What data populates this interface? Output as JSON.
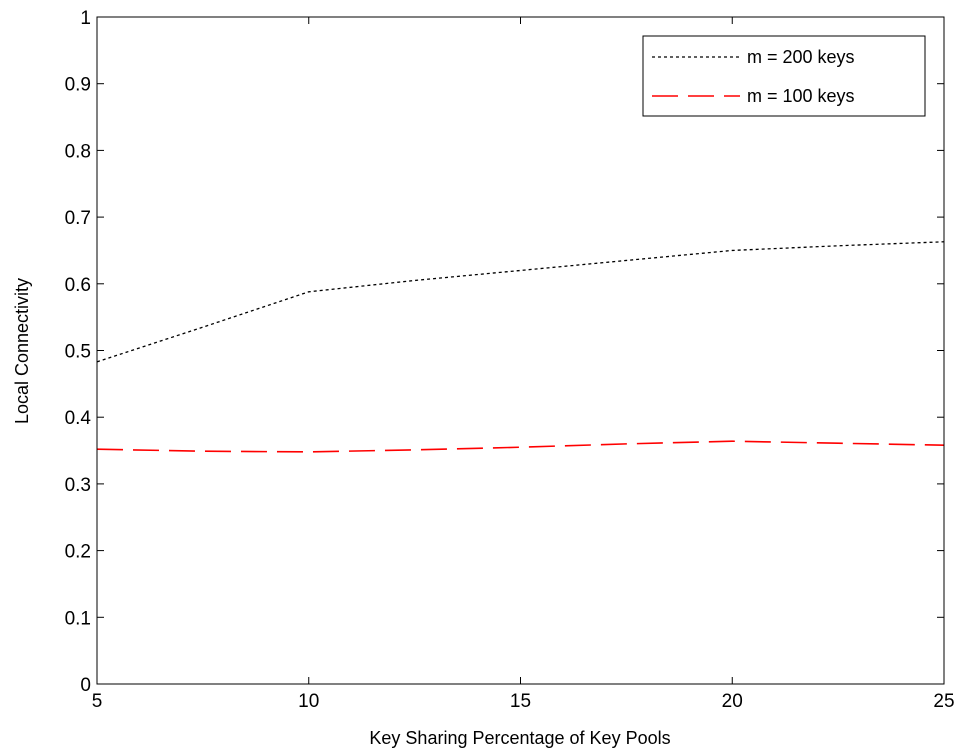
{
  "chart_data": {
    "type": "line",
    "title": "",
    "xlabel": "Key Sharing Percentage of Key Pools",
    "ylabel": "Local Connectivity",
    "xlim": [
      5,
      25
    ],
    "ylim": [
      0,
      1
    ],
    "xticks": [
      "5",
      "10",
      "15",
      "20",
      "25"
    ],
    "yticks": [
      "0",
      "0.1",
      "0.2",
      "0.3",
      "0.4",
      "0.5",
      "0.6",
      "0.7",
      "0.8",
      "0.9",
      "1"
    ],
    "grid": false,
    "legend_position": "top-right",
    "x": [
      5,
      7.5,
      10,
      12.5,
      15,
      17.5,
      20,
      22.5,
      25
    ],
    "series": [
      {
        "name": "m = 200 keys",
        "color": "#000000",
        "style": "dotted",
        "values": [
          0.483,
          0.535,
          0.588,
          0.605,
          0.62,
          0.635,
          0.65,
          0.657,
          0.663
        ]
      },
      {
        "name": "m = 100 keys",
        "color": "#ff0000",
        "style": "dashed",
        "values": [
          0.352,
          0.349,
          0.348,
          0.351,
          0.355,
          0.36,
          0.364,
          0.361,
          0.358
        ]
      }
    ]
  }
}
